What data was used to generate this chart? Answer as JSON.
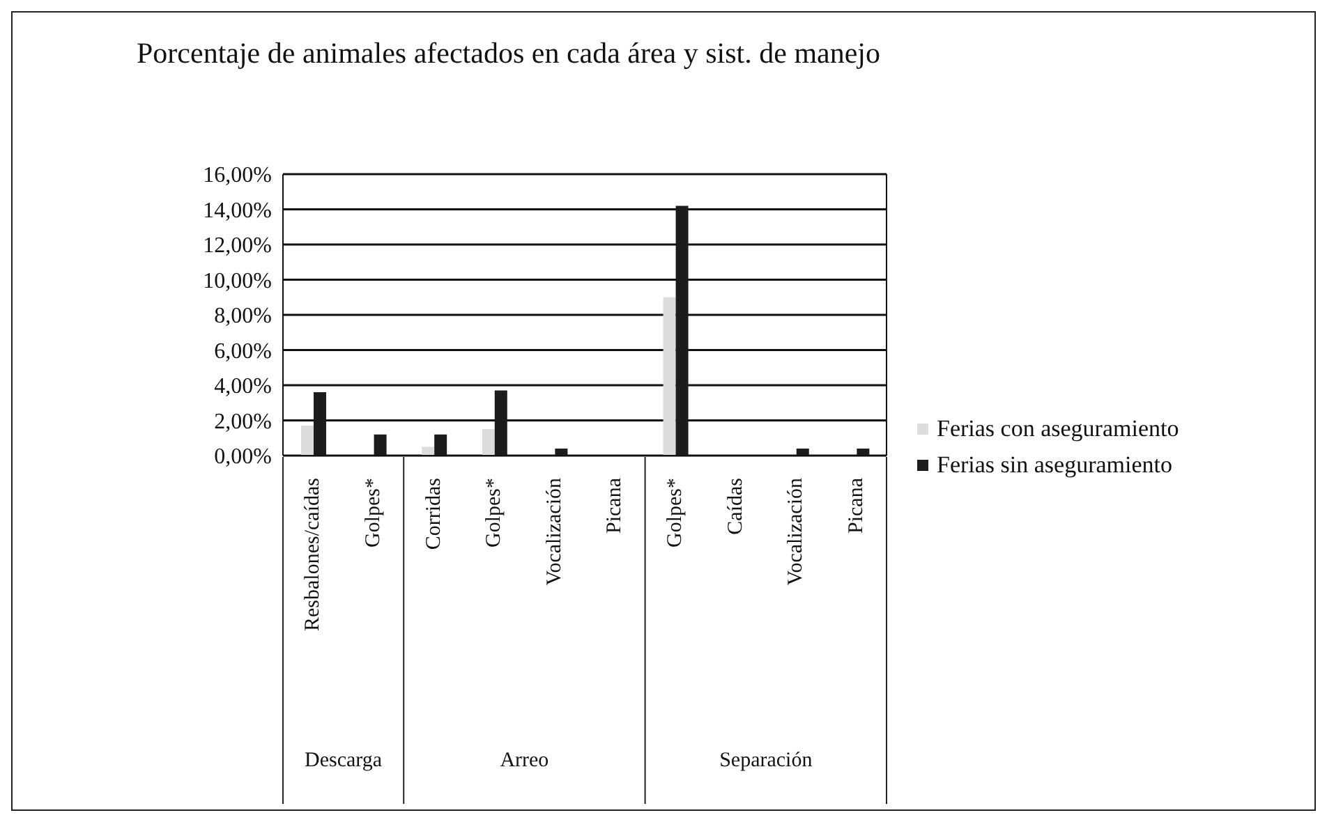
{
  "chart_data": {
    "type": "bar",
    "title": "Porcentaje de animales afectados en cada área y sist. de manejo",
    "categories": [
      "Resbalones/caídas",
      "Golpes*",
      "Corridas",
      "Golpes*",
      "Vocalización",
      "Picana",
      "Golpes*",
      "Caídas",
      "Vocalización",
      "Picana"
    ],
    "series": [
      {
        "name": "Ferias con aseguramiento",
        "color": "#dcdcdc",
        "values": [
          1.7,
          0,
          0.5,
          1.5,
          0,
          0,
          9.0,
          0,
          0,
          0
        ]
      },
      {
        "name": "Ferias sin aseguramiento",
        "color": "#1c1c1c",
        "values": [
          3.6,
          1.2,
          1.2,
          3.7,
          0.4,
          0,
          14.2,
          0,
          0.4,
          0.4
        ]
      }
    ],
    "ylim": [
      0,
      16
    ],
    "yticks": [
      {
        "value": 0,
        "label": "0,00%"
      },
      {
        "value": 2,
        "label": "2,00%"
      },
      {
        "value": 4,
        "label": "4,00%"
      },
      {
        "value": 6,
        "label": "6,00%"
      },
      {
        "value": 8,
        "label": "8,00%"
      },
      {
        "value": 10,
        "label": "10,00%"
      },
      {
        "value": 12,
        "label": "12,00%"
      },
      {
        "value": 14,
        "label": "14,00%"
      },
      {
        "value": 16,
        "label": "16,00%"
      }
    ],
    "grid": "y",
    "legend": "right",
    "annotations": [
      "Descarga",
      "Arreo",
      "Separación"
    ]
  }
}
